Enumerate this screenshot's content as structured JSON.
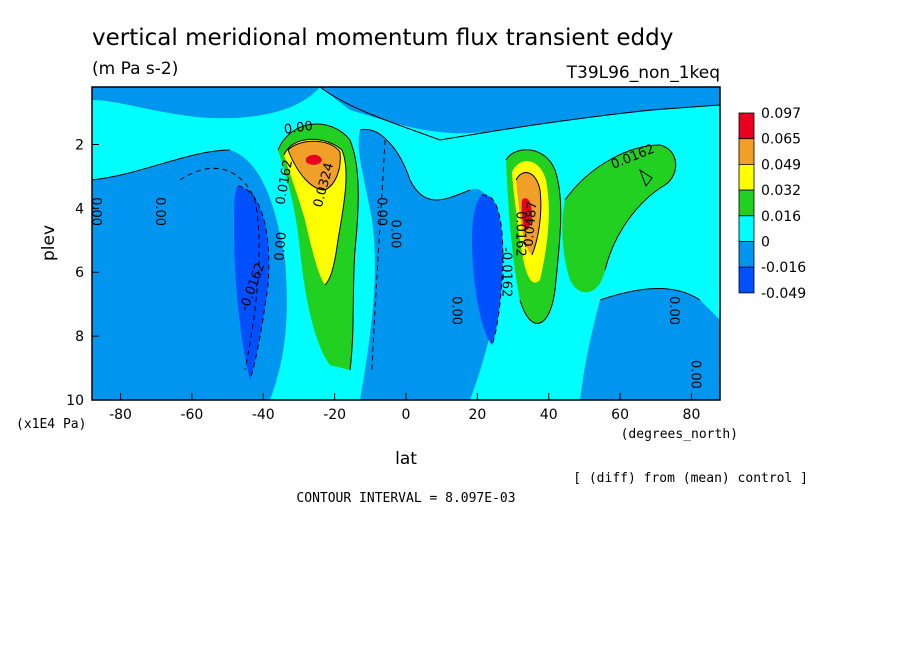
{
  "chart_data": {
    "type": "heatmap",
    "title": "vertical meridional momentum flux transient eddy",
    "units": "(m Pa s-2)",
    "run_label": "T39L96_non_1keq",
    "xlabel": "lat",
    "x_units": "(degrees_north)",
    "ylabel": "plev",
    "y_units": "(x1E4 Pa)",
    "xlim": [
      -88,
      88
    ],
    "ylim": [
      10,
      0.2
    ],
    "x_ticks": [
      -80,
      -60,
      -40,
      -20,
      0,
      20,
      40,
      60,
      80
    ],
    "y_ticks": [
      2,
      4,
      6,
      8,
      10
    ],
    "note": "[ (diff) from (mean) control ]",
    "contour_interval": "CONTOUR INTERVAL = 8.097E-03",
    "legend": {
      "placement": "right",
      "levels": [
        "0.097",
        "0.065",
        "0.049",
        "0.032",
        "0.016",
        "0",
        "-0.016",
        "-0.049"
      ],
      "colors": [
        "#e8001e",
        "#f0a028",
        "#ffff00",
        "#22d022",
        "#00ffff",
        "#0096f0",
        "#0050ff"
      ]
    },
    "contour_labels": [
      {
        "text": "0.00",
        "x": -30,
        "y": 1.6,
        "angle": -8
      },
      {
        "text": "0.00",
        "x": -88,
        "y": 4.1,
        "angle": 90
      },
      {
        "text": "0.00",
        "x": -70,
        "y": 4.1,
        "angle": 90
      },
      {
        "text": "-0.0162",
        "x": -42,
        "y": 6.5,
        "angle": -70
      },
      {
        "text": "0.00",
        "x": -34,
        "y": 5.2,
        "angle": -85
      },
      {
        "text": "0.0162",
        "x": -33,
        "y": 3.2,
        "angle": -80
      },
      {
        "text": "0.0324",
        "x": -22,
        "y": 3.3,
        "angle": -75
      },
      {
        "text": "0.00",
        "x": -8,
        "y": 4.1,
        "angle": 90
      },
      {
        "text": "0.00",
        "x": -4,
        "y": 4.8,
        "angle": 90
      },
      {
        "text": "0.00",
        "x": 13,
        "y": 7.2,
        "angle": 90
      },
      {
        "text": "-0.0162",
        "x": 27,
        "y": 6.0,
        "angle": 90
      },
      {
        "text": "0.0162",
        "x": 31,
        "y": 4.8,
        "angle": 90
      },
      {
        "text": "0.0487",
        "x": 36,
        "y": 4.5,
        "angle": -85
      },
      {
        "text": "0.0162",
        "x": 64,
        "y": 2.5,
        "angle": -22
      },
      {
        "text": "0.00",
        "x": 74,
        "y": 7.2,
        "angle": 90
      },
      {
        "text": "0.00",
        "x": 80,
        "y": 9.2,
        "angle": 90
      }
    ],
    "features": [
      {
        "name": "SH positive jet core",
        "lat_center": -26,
        "plev_center": 2.5,
        "max_value": 0.097
      },
      {
        "name": "NH positive jet core",
        "lat_center": 34,
        "plev_center": 4.0,
        "max_value": 0.097
      },
      {
        "name": "SH negative band",
        "lat_center": -45,
        "plev_center": 5.5,
        "min_value": -0.049
      },
      {
        "name": "NH negative band",
        "lat_center": 22,
        "plev_center": 6.0,
        "min_value": -0.049
      },
      {
        "name": "NH positive outer band",
        "lat_center": 55,
        "plev_center": 4.5,
        "max_value": 0.032
      }
    ]
  }
}
